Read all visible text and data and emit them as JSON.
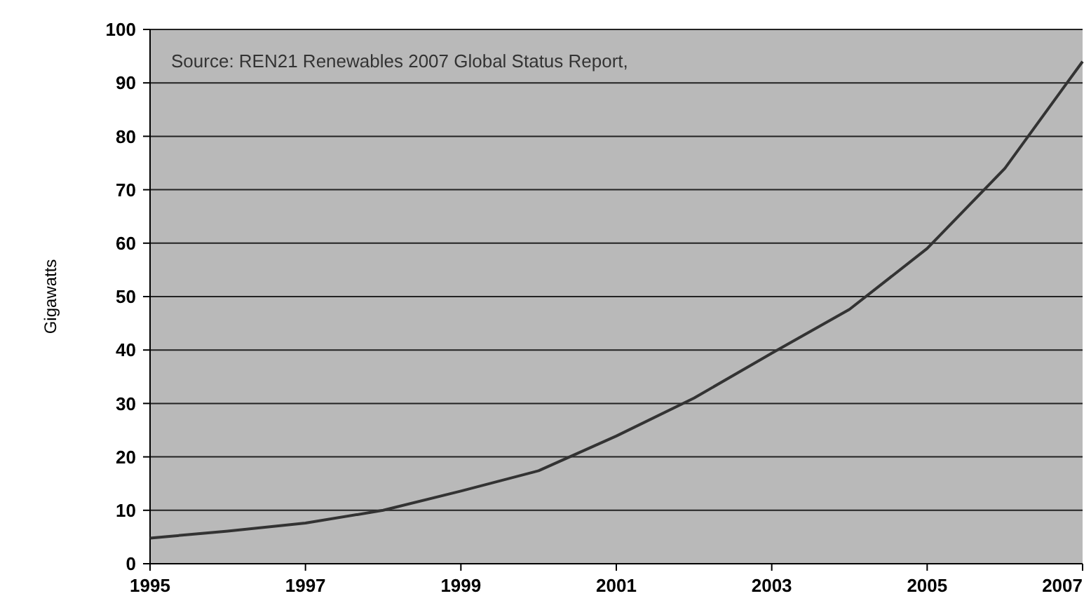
{
  "chart_data": {
    "type": "line",
    "ylabel": "Gigawatts",
    "annotations": [
      "Source: REN21 Renewables 2007 Global Status Report,"
    ],
    "x": [
      1995,
      1996,
      1997,
      1998,
      1999,
      2000,
      2001,
      2002,
      2003,
      2004,
      2005,
      2006,
      2007
    ],
    "series": [
      {
        "color": "#333333",
        "values": [
          4.8,
          6.1,
          7.6,
          10,
          13.6,
          17.4,
          23.9,
          31,
          39.4,
          47.6,
          59,
          74,
          94
        ]
      }
    ],
    "xlim": [
      1995,
      2007
    ],
    "xticks": [
      1995,
      1997,
      1999,
      2001,
      2003,
      2005,
      2007
    ],
    "ylim": [
      0,
      100
    ],
    "yticks": [
      0,
      10,
      20,
      30,
      40,
      50,
      60,
      70,
      80,
      90,
      100
    ],
    "grid": "y",
    "marker": "none",
    "line_style": "solid"
  }
}
